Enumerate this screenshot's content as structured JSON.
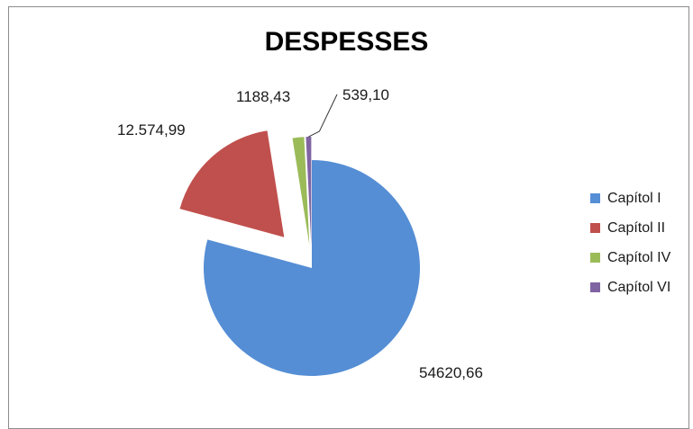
{
  "chart_data": {
    "type": "pie",
    "title": "DESPESSES",
    "legend_position": "right",
    "slices": [
      {
        "name": "Capítol I",
        "value": 54620.66,
        "label": "54620,66",
        "color": "#558ed5",
        "exploded": false
      },
      {
        "name": "Capítol II",
        "value": 12574.99,
        "label": "12.574,99",
        "color": "#c0504d",
        "exploded": true
      },
      {
        "name": "Capítol IV",
        "value": 1188.43,
        "label": "1188,43",
        "color": "#9bbb59",
        "exploded": true
      },
      {
        "name": "Capítol VI",
        "value": 539.1,
        "label": "539,10",
        "color": "#8064a2",
        "exploded": true
      }
    ]
  }
}
